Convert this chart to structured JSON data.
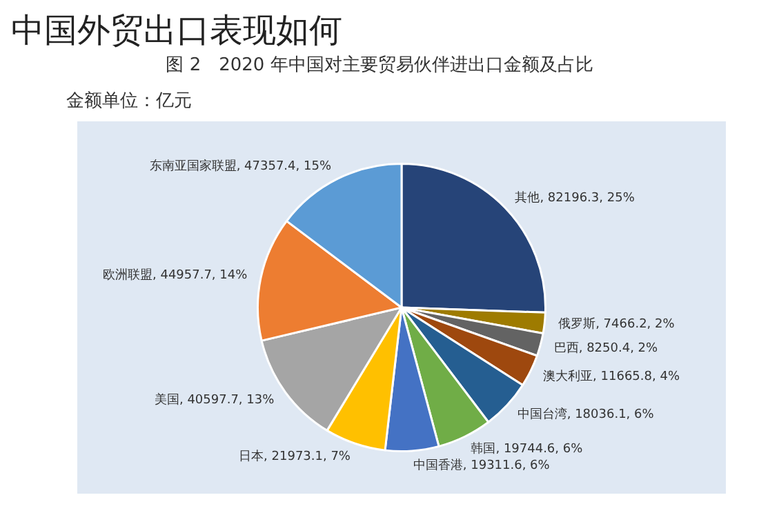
{
  "chart_data": {
    "type": "pie",
    "title": "中国外贸出口表现如何",
    "subtitle": "图 2　2020 年中国对主要贸易伙伴进出口金额及占比",
    "annotations": [
      "金额单位：亿元"
    ],
    "categories": [
      "其他",
      "俄罗斯",
      "巴西",
      "澳大利亚",
      "中国台湾",
      "韩国",
      "中国香港",
      "日本",
      "美国",
      "欧洲联盟",
      "东南亚国家联盟"
    ],
    "values": [
      82196.3,
      7466.2,
      8250.4,
      11665.8,
      18036.1,
      19744.6,
      19311.6,
      21973.1,
      40597.7,
      44957.7,
      47357.4
    ],
    "colors": [
      "#264478",
      "#9e7b00",
      "#636363",
      "#9e480e",
      "#255e91",
      "#70ad47",
      "#4472c4",
      "#ffc000",
      "#a5a5a5",
      "#ed7d31",
      "#5b9bd5"
    ],
    "value_labels": [
      "82196.3, 25%",
      "7466.2, 2%",
      "8250.4, 2%",
      "11665.8, 4%",
      "18036.1, 6%",
      "19744.6, 6%",
      "19311.6, 6%",
      "21973.1, 7%",
      "40597.7, 13%",
      "44957.7, 14%",
      "47357.4, 15%"
    ],
    "legend": false
  }
}
